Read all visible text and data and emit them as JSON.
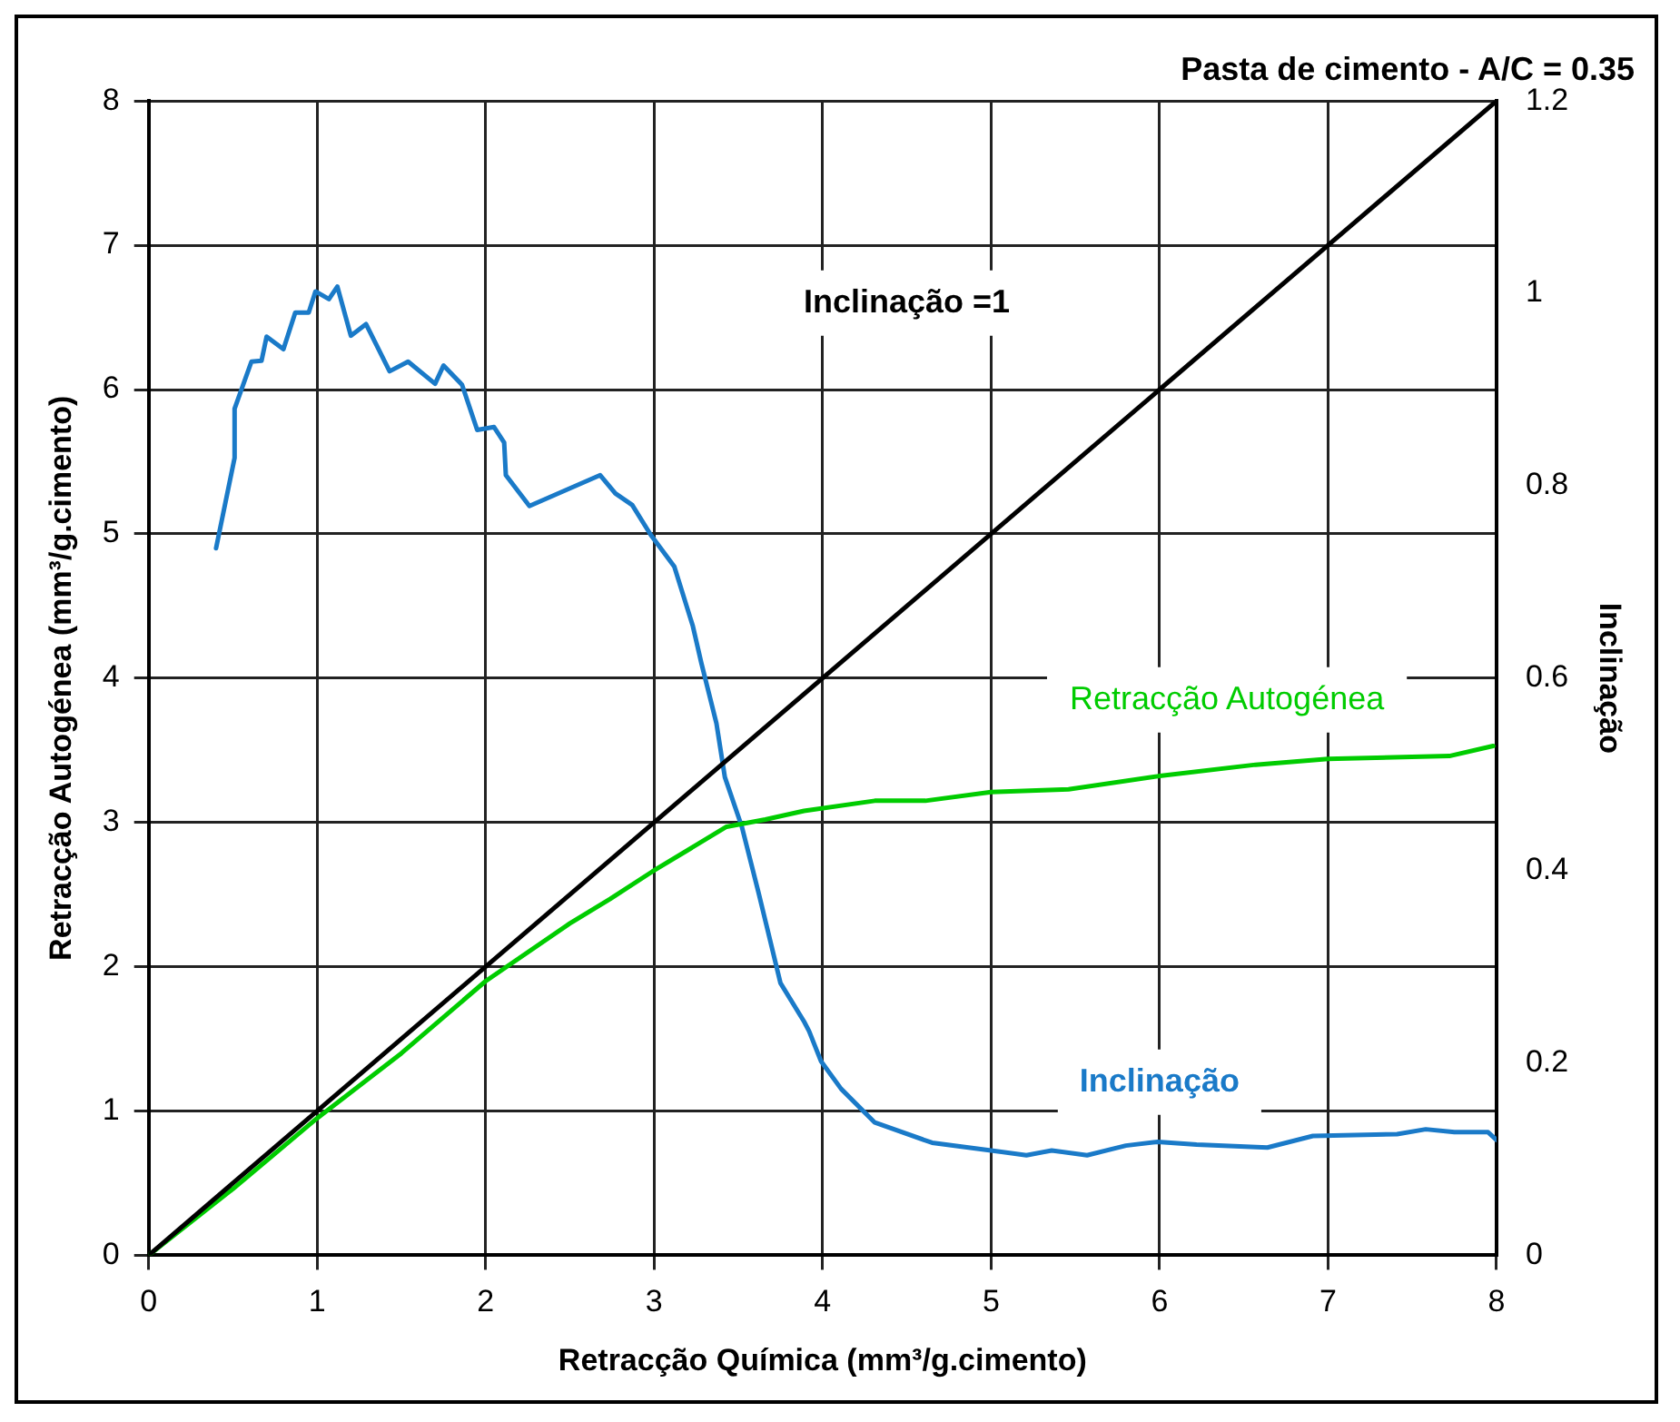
{
  "chart_data": {
    "type": "line",
    "title": "Pasta de cimento - A/C = 0.35",
    "xlabel": "Retracção Química (mm³/g.cimento)",
    "ylabel": "Retracção Autogénea (mm³/g.cimento)",
    "y2label": "Inclinação",
    "series": [
      {
        "name": "Inclinação =1",
        "color": "#000000",
        "x": [
          0,
          8
        ],
        "values": [
          0,
          8
        ]
      },
      {
        "name": "Retracção Autogénea",
        "color": "#00cc00",
        "x": [
          0,
          0.5,
          1,
          1.5,
          2,
          2.5,
          2.74,
          2.99,
          3.43,
          3.66,
          3.89,
          4.31,
          4.61,
          5,
          5.46,
          5.99,
          6.57,
          7,
          7.72,
          7.98
        ],
        "values": [
          0,
          0.46,
          0.95,
          1.4,
          1.9,
          2.3,
          2.47,
          2.66,
          2.97,
          3.02,
          3.08,
          3.15,
          3.15,
          3.21,
          3.23,
          3.32,
          3.4,
          3.44,
          3.46,
          3.53
        ]
      },
      {
        "name": "Inclinação",
        "color": "#1a7ac8",
        "axis": "y2",
        "x": [
          0.4,
          0.51,
          0.51,
          0.61,
          0.67,
          0.7,
          0.8,
          0.87,
          0.95,
          0.99,
          1.07,
          1.12,
          1.2,
          1.29,
          1.43,
          1.54,
          1.7,
          1.75,
          1.86,
          1.95,
          2.05,
          2.11,
          2.12,
          2.26,
          2.51,
          2.68,
          2.77,
          2.87,
          2.98,
          3.12,
          3.23,
          3.28,
          3.37,
          3.42,
          3.52,
          3.62,
          3.75,
          3.89,
          3.92,
          3.99,
          4.11,
          4.31,
          4.65,
          5,
          5.21,
          5.36,
          5.57,
          5.8,
          5.99,
          6.22,
          6.64,
          6.91,
          7.41,
          7.58,
          7.75,
          7.95,
          8
        ],
        "values": [
          0.735,
          0.829,
          0.88,
          0.929,
          0.93,
          0.955,
          0.942,
          0.98,
          0.98,
          1.002,
          0.994,
          1.007,
          0.956,
          0.968,
          0.919,
          0.929,
          0.906,
          0.925,
          0.905,
          0.858,
          0.861,
          0.845,
          0.811,
          0.779,
          0.798,
          0.811,
          0.792,
          0.78,
          0.749,
          0.716,
          0.654,
          0.616,
          0.553,
          0.497,
          0.446,
          0.377,
          0.283,
          0.243,
          0.233,
          0.202,
          0.173,
          0.138,
          0.117,
          0.109,
          0.104,
          0.109,
          0.104,
          0.114,
          0.118,
          0.115,
          0.112,
          0.124,
          0.126,
          0.131,
          0.128,
          0.128,
          0.12
        ]
      }
    ],
    "xlim": [
      0,
      8
    ],
    "xticks": [
      0,
      1,
      2,
      3,
      4,
      5,
      6,
      7,
      8
    ],
    "ylim": [
      0,
      8
    ],
    "yticks": [
      0,
      1,
      2,
      3,
      4,
      5,
      6,
      7,
      8
    ],
    "y2lim": [
      0,
      1.2
    ],
    "y2ticks": [
      0,
      0.2,
      0.4,
      0.6,
      0.8,
      1,
      1.2
    ],
    "grid": true,
    "legend": false,
    "marker": "none",
    "line_style": "solid"
  }
}
